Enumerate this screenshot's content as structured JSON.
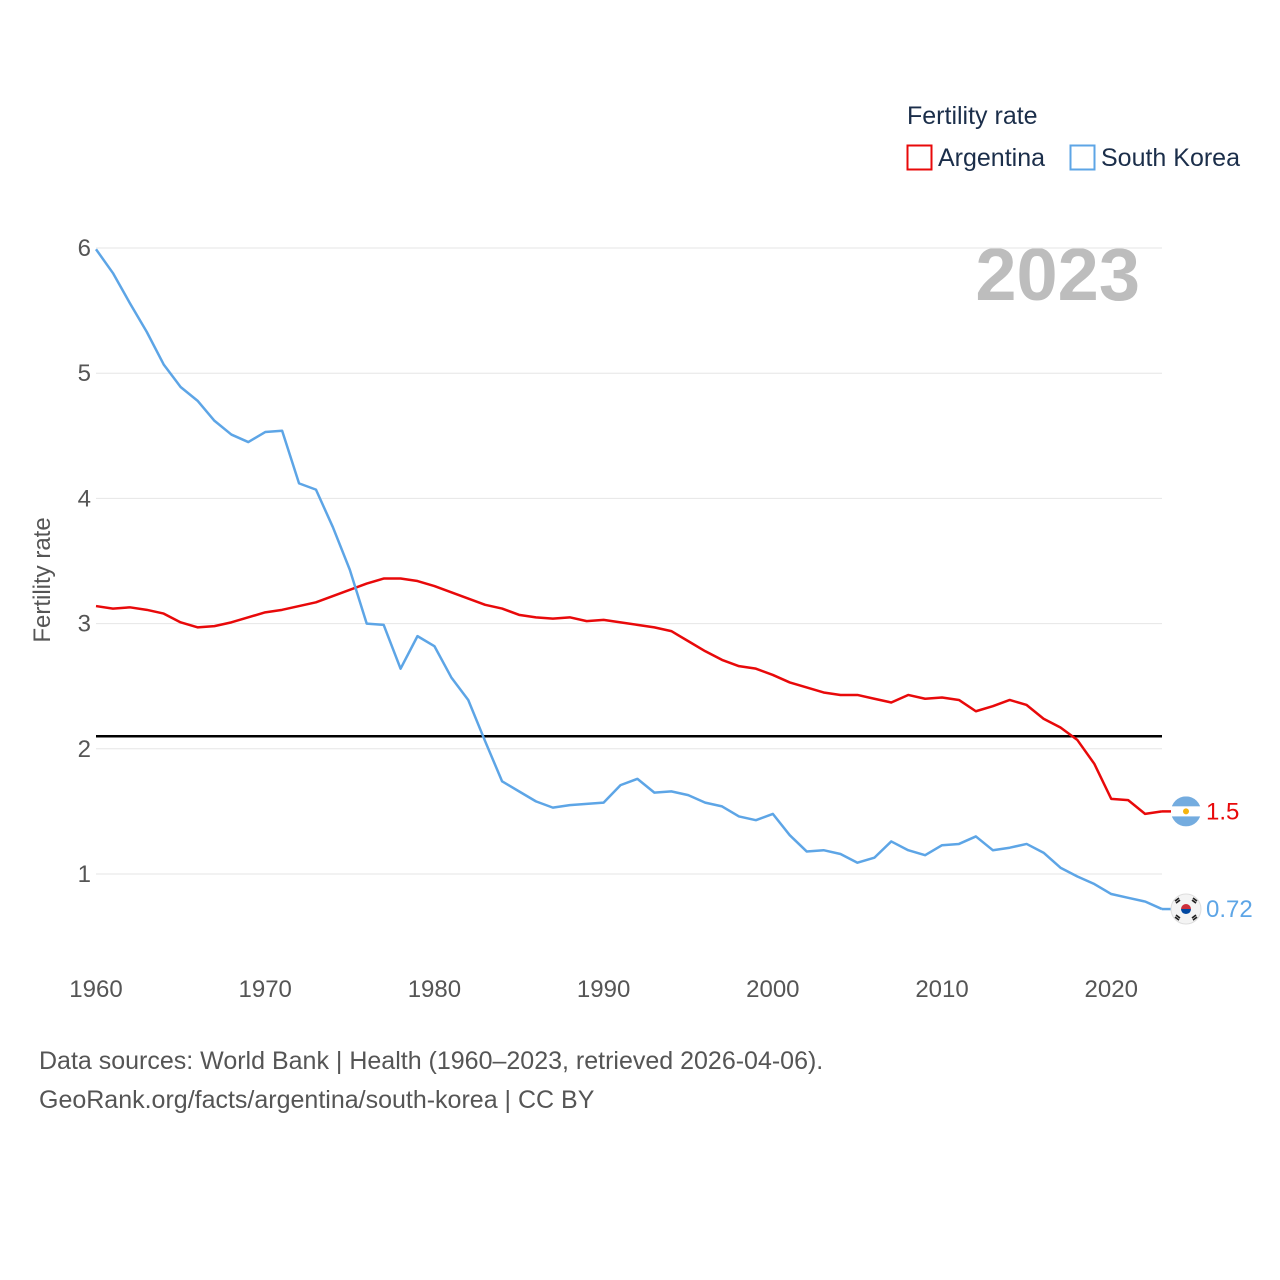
{
  "legend": {
    "title": "Fertility rate",
    "items": [
      {
        "label": "Argentina",
        "color": "#e8090a"
      },
      {
        "label": "South Korea",
        "color": "#5da5e6"
      }
    ]
  },
  "watermark_year": "2023",
  "source": {
    "line1": "Data sources: World Bank | Health (1960–2023, retrieved 2026-04-06).",
    "line2": "GeoRank.org/facts/argentina/south-korea | CC BY"
  },
  "chart_data": {
    "type": "line",
    "title": "Fertility rate",
    "xlabel": "",
    "ylabel": "Fertility rate",
    "xlim": [
      1960,
      2023
    ],
    "ylim": [
      0.5,
      6
    ],
    "x_ticks": [
      1960,
      1970,
      1980,
      1990,
      2000,
      2010,
      2020
    ],
    "y_ticks": [
      1,
      2,
      3,
      4,
      5,
      6
    ],
    "grid": true,
    "reference_line": {
      "value": 2.1,
      "color": "#000000"
    },
    "x": [
      1960,
      1961,
      1962,
      1963,
      1964,
      1965,
      1966,
      1967,
      1968,
      1969,
      1970,
      1971,
      1972,
      1973,
      1974,
      1975,
      1976,
      1977,
      1978,
      1979,
      1980,
      1981,
      1982,
      1983,
      1984,
      1985,
      1986,
      1987,
      1988,
      1989,
      1990,
      1991,
      1992,
      1993,
      1994,
      1995,
      1996,
      1997,
      1998,
      1999,
      2000,
      2001,
      2002,
      2003,
      2004,
      2005,
      2006,
      2007,
      2008,
      2009,
      2010,
      2011,
      2012,
      2013,
      2014,
      2015,
      2016,
      2017,
      2018,
      2019,
      2020,
      2021,
      2022,
      2023
    ],
    "series": [
      {
        "name": "Argentina",
        "color": "#e8090a",
        "end_label": "1.5",
        "flag": "argentina-flag-icon",
        "values": [
          3.14,
          3.12,
          3.13,
          3.11,
          3.08,
          3.01,
          2.97,
          2.98,
          3.01,
          3.05,
          3.09,
          3.11,
          3.14,
          3.17,
          3.22,
          3.27,
          3.32,
          3.36,
          3.36,
          3.34,
          3.3,
          3.25,
          3.2,
          3.15,
          3.12,
          3.07,
          3.05,
          3.04,
          3.05,
          3.02,
          3.03,
          3.01,
          2.99,
          2.97,
          2.94,
          2.86,
          2.78,
          2.71,
          2.66,
          2.64,
          2.59,
          2.53,
          2.49,
          2.45,
          2.43,
          2.43,
          2.4,
          2.37,
          2.43,
          2.4,
          2.41,
          2.39,
          2.3,
          2.34,
          2.39,
          2.35,
          2.24,
          2.17,
          2.07,
          1.88,
          1.6,
          1.59,
          1.48,
          1.5
        ]
      },
      {
        "name": "South Korea",
        "color": "#5da5e6",
        "end_label": "0.72",
        "flag": "south-korea-flag-icon",
        "values": [
          5.99,
          5.8,
          5.56,
          5.33,
          5.07,
          4.89,
          4.78,
          4.62,
          4.51,
          4.45,
          4.53,
          4.54,
          4.12,
          4.07,
          3.77,
          3.43,
          3.0,
          2.99,
          2.64,
          2.9,
          2.82,
          2.57,
          2.39,
          2.06,
          1.74,
          1.66,
          1.58,
          1.53,
          1.55,
          1.56,
          1.57,
          1.71,
          1.76,
          1.65,
          1.66,
          1.63,
          1.57,
          1.54,
          1.46,
          1.43,
          1.48,
          1.31,
          1.18,
          1.19,
          1.16,
          1.09,
          1.13,
          1.26,
          1.19,
          1.15,
          1.23,
          1.24,
          1.3,
          1.19,
          1.21,
          1.24,
          1.17,
          1.05,
          0.98,
          0.92,
          0.84,
          0.81,
          0.78,
          0.72
        ]
      }
    ]
  }
}
